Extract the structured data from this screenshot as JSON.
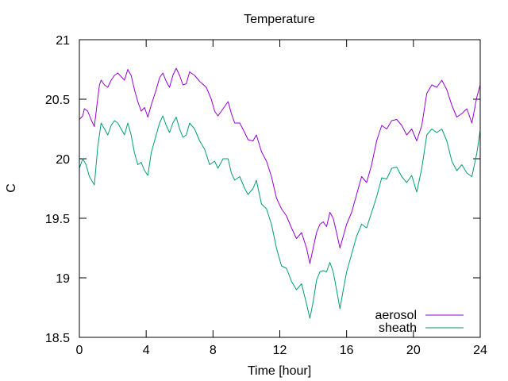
{
  "chart_data": {
    "type": "line",
    "title": "Temperature",
    "xlabel": "Time [hour]",
    "ylabel": "C",
    "xlim": [
      0,
      24
    ],
    "ylim": [
      18.5,
      21
    ],
    "xticks": [
      0,
      4,
      8,
      12,
      16,
      20,
      24
    ],
    "yticks": [
      18.5,
      19,
      19.5,
      20,
      20.5,
      21
    ],
    "xtick_labels": [
      "0",
      "4",
      "8",
      "12",
      "16",
      "20",
      "24"
    ],
    "ytick_labels": [
      "18.5",
      "19",
      "19.5",
      "20",
      "20.5",
      "21"
    ],
    "grid": false,
    "legend_position": "bottom-right",
    "series": [
      {
        "name": "aerosol",
        "color": "#9400d3",
        "points": [
          [
            0.0,
            20.33
          ],
          [
            0.2,
            20.36
          ],
          [
            0.3,
            20.42
          ],
          [
            0.5,
            20.4
          ],
          [
            0.7,
            20.33
          ],
          [
            0.9,
            20.27
          ],
          [
            1.05,
            20.45
          ],
          [
            1.2,
            20.62
          ],
          [
            1.3,
            20.66
          ],
          [
            1.5,
            20.62
          ],
          [
            1.7,
            20.6
          ],
          [
            1.9,
            20.66
          ],
          [
            2.1,
            20.7
          ],
          [
            2.3,
            20.72
          ],
          [
            2.5,
            20.69
          ],
          [
            2.7,
            20.66
          ],
          [
            2.9,
            20.75
          ],
          [
            3.1,
            20.7
          ],
          [
            3.3,
            20.58
          ],
          [
            3.5,
            20.48
          ],
          [
            3.7,
            20.4
          ],
          [
            3.9,
            20.43
          ],
          [
            4.1,
            20.35
          ],
          [
            4.3,
            20.45
          ],
          [
            4.6,
            20.58
          ],
          [
            4.8,
            20.68
          ],
          [
            5.0,
            20.72
          ],
          [
            5.2,
            20.65
          ],
          [
            5.4,
            20.6
          ],
          [
            5.6,
            20.7
          ],
          [
            5.8,
            20.76
          ],
          [
            6.0,
            20.7
          ],
          [
            6.2,
            20.62
          ],
          [
            6.4,
            20.63
          ],
          [
            6.6,
            20.73
          ],
          [
            6.9,
            20.7
          ],
          [
            7.2,
            20.65
          ],
          [
            7.6,
            20.6
          ],
          [
            7.9,
            20.5
          ],
          [
            8.1,
            20.4
          ],
          [
            8.3,
            20.36
          ],
          [
            8.6,
            20.42
          ],
          [
            8.9,
            20.48
          ],
          [
            9.1,
            20.38
          ],
          [
            9.3,
            20.3
          ],
          [
            9.6,
            20.3
          ],
          [
            9.9,
            20.22
          ],
          [
            10.1,
            20.16
          ],
          [
            10.4,
            20.15
          ],
          [
            10.6,
            20.2
          ],
          [
            10.9,
            20.06
          ],
          [
            11.2,
            19.98
          ],
          [
            11.5,
            19.85
          ],
          [
            11.8,
            19.67
          ],
          [
            12.1,
            19.58
          ],
          [
            12.4,
            19.52
          ],
          [
            12.7,
            19.42
          ],
          [
            13.0,
            19.33
          ],
          [
            13.3,
            19.38
          ],
          [
            13.6,
            19.25
          ],
          [
            13.8,
            19.12
          ],
          [
            14.0,
            19.25
          ],
          [
            14.2,
            19.38
          ],
          [
            14.4,
            19.45
          ],
          [
            14.6,
            19.47
          ],
          [
            14.8,
            19.43
          ],
          [
            15.0,
            19.55
          ],
          [
            15.2,
            19.5
          ],
          [
            15.4,
            19.38
          ],
          [
            15.6,
            19.25
          ],
          [
            15.8,
            19.35
          ],
          [
            16.0,
            19.45
          ],
          [
            16.3,
            19.55
          ],
          [
            16.6,
            19.7
          ],
          [
            16.9,
            19.85
          ],
          [
            17.2,
            19.8
          ],
          [
            17.5,
            19.95
          ],
          [
            17.8,
            20.15
          ],
          [
            18.1,
            20.28
          ],
          [
            18.4,
            20.25
          ],
          [
            18.7,
            20.32
          ],
          [
            19.0,
            20.33
          ],
          [
            19.3,
            20.28
          ],
          [
            19.6,
            20.2
          ],
          [
            19.9,
            20.25
          ],
          [
            20.2,
            20.15
          ],
          [
            20.5,
            20.28
          ],
          [
            20.8,
            20.55
          ],
          [
            21.1,
            20.62
          ],
          [
            21.4,
            20.6
          ],
          [
            21.7,
            20.66
          ],
          [
            22.0,
            20.58
          ],
          [
            22.3,
            20.45
          ],
          [
            22.6,
            20.35
          ],
          [
            22.9,
            20.38
          ],
          [
            23.2,
            20.42
          ],
          [
            23.5,
            20.3
          ],
          [
            23.8,
            20.52
          ],
          [
            24.0,
            20.62
          ]
        ]
      },
      {
        "name": "sheath",
        "color": "#009e73",
        "points": [
          [
            0.0,
            19.92
          ],
          [
            0.2,
            20.0
          ],
          [
            0.4,
            19.95
          ],
          [
            0.6,
            19.85
          ],
          [
            0.9,
            19.78
          ],
          [
            1.1,
            20.1
          ],
          [
            1.3,
            20.3
          ],
          [
            1.5,
            20.25
          ],
          [
            1.7,
            20.2
          ],
          [
            1.9,
            20.28
          ],
          [
            2.1,
            20.32
          ],
          [
            2.3,
            20.3
          ],
          [
            2.5,
            20.25
          ],
          [
            2.7,
            20.2
          ],
          [
            2.9,
            20.3
          ],
          [
            3.1,
            20.2
          ],
          [
            3.3,
            20.05
          ],
          [
            3.5,
            19.95
          ],
          [
            3.7,
            19.97
          ],
          [
            3.9,
            19.9
          ],
          [
            4.1,
            19.86
          ],
          [
            4.3,
            20.05
          ],
          [
            4.6,
            20.2
          ],
          [
            4.8,
            20.3
          ],
          [
            5.0,
            20.36
          ],
          [
            5.2,
            20.28
          ],
          [
            5.4,
            20.22
          ],
          [
            5.6,
            20.3
          ],
          [
            5.8,
            20.35
          ],
          [
            6.0,
            20.25
          ],
          [
            6.2,
            20.18
          ],
          [
            6.4,
            20.2
          ],
          [
            6.6,
            20.3
          ],
          [
            6.9,
            20.25
          ],
          [
            7.2,
            20.15
          ],
          [
            7.5,
            20.08
          ],
          [
            7.8,
            19.95
          ],
          [
            8.1,
            19.98
          ],
          [
            8.3,
            19.92
          ],
          [
            8.6,
            20.0
          ],
          [
            8.9,
            20.0
          ],
          [
            9.1,
            19.88
          ],
          [
            9.3,
            19.82
          ],
          [
            9.6,
            19.85
          ],
          [
            9.9,
            19.75
          ],
          [
            10.1,
            19.7
          ],
          [
            10.4,
            19.75
          ],
          [
            10.6,
            19.82
          ],
          [
            10.9,
            19.62
          ],
          [
            11.2,
            19.58
          ],
          [
            11.5,
            19.45
          ],
          [
            11.8,
            19.25
          ],
          [
            12.1,
            19.1
          ],
          [
            12.4,
            19.08
          ],
          [
            12.7,
            18.97
          ],
          [
            13.0,
            18.9
          ],
          [
            13.3,
            18.95
          ],
          [
            13.6,
            18.78
          ],
          [
            13.8,
            18.66
          ],
          [
            14.0,
            18.8
          ],
          [
            14.2,
            18.98
          ],
          [
            14.4,
            19.05
          ],
          [
            14.6,
            19.06
          ],
          [
            14.8,
            19.05
          ],
          [
            15.0,
            19.13
          ],
          [
            15.2,
            19.05
          ],
          [
            15.4,
            18.9
          ],
          [
            15.6,
            18.74
          ],
          [
            15.8,
            18.9
          ],
          [
            16.0,
            19.05
          ],
          [
            16.3,
            19.2
          ],
          [
            16.6,
            19.35
          ],
          [
            16.9,
            19.45
          ],
          [
            17.2,
            19.42
          ],
          [
            17.5,
            19.55
          ],
          [
            17.8,
            19.68
          ],
          [
            18.1,
            19.84
          ],
          [
            18.4,
            19.83
          ],
          [
            18.7,
            19.92
          ],
          [
            19.0,
            19.93
          ],
          [
            19.3,
            19.85
          ],
          [
            19.6,
            19.8
          ],
          [
            19.9,
            19.86
          ],
          [
            20.2,
            19.72
          ],
          [
            20.5,
            19.92
          ],
          [
            20.8,
            20.2
          ],
          [
            21.1,
            20.25
          ],
          [
            21.4,
            20.22
          ],
          [
            21.7,
            20.25
          ],
          [
            22.0,
            20.15
          ],
          [
            22.3,
            19.98
          ],
          [
            22.6,
            19.9
          ],
          [
            22.9,
            19.95
          ],
          [
            23.2,
            19.88
          ],
          [
            23.5,
            19.85
          ],
          [
            23.8,
            20.05
          ],
          [
            24.0,
            20.24
          ]
        ]
      }
    ]
  }
}
